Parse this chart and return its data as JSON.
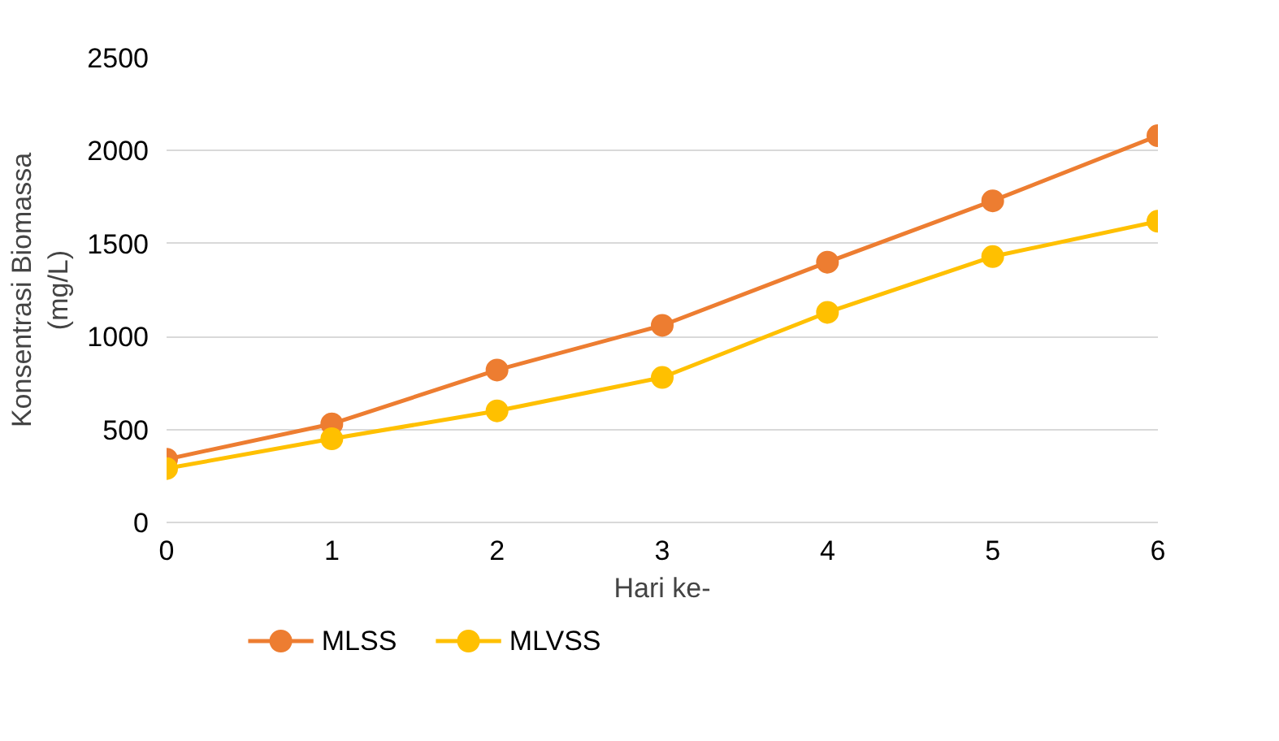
{
  "chart_data": {
    "type": "line",
    "xlabel": "Hari ke-",
    "ylabel": "Konsentrasi Biomassa\n(mg/L)",
    "x": [
      0,
      1,
      2,
      3,
      4,
      5,
      6
    ],
    "series": [
      {
        "name": "MLSS",
        "color": "#ed7d31",
        "values": [
          340,
          530,
          820,
          1060,
          1400,
          1730,
          2080
        ]
      },
      {
        "name": "MLVSS",
        "color": "#ffc000",
        "values": [
          290,
          450,
          600,
          780,
          1130,
          1430,
          1620
        ]
      }
    ],
    "xlim": [
      0,
      6
    ],
    "xticks": [
      0,
      1,
      2,
      3,
      4,
      5,
      6
    ],
    "ylim": [
      0,
      2500
    ],
    "yticks": [
      0,
      500,
      1000,
      1500,
      2000,
      2500
    ],
    "grid": "y",
    "legend": "bottom",
    "marker": "circle",
    "line_style": "solid"
  }
}
